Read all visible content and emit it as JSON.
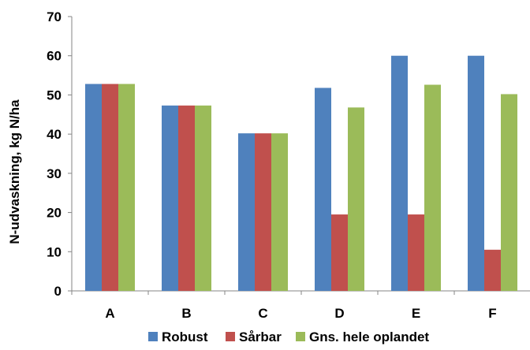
{
  "chart_data": {
    "type": "bar",
    "title": "",
    "xlabel": "",
    "ylabel": "N-udvaskning, kg N/ha",
    "categories": [
      "A",
      "B",
      "C",
      "D",
      "E",
      "F"
    ],
    "series": [
      {
        "name": "Robust",
        "color": "#4F81BD",
        "values": [
          52.8,
          47.3,
          40.2,
          51.8,
          60.0,
          60.0
        ]
      },
      {
        "name": "Sårbar",
        "color": "#C0504D",
        "values": [
          52.8,
          47.3,
          40.2,
          19.5,
          19.5,
          10.5
        ]
      },
      {
        "name": "Gns. hele oplandet",
        "color": "#9BBB59",
        "values": [
          52.8,
          47.3,
          40.2,
          46.8,
          52.6,
          50.2
        ]
      }
    ],
    "ylim": [
      0,
      70
    ],
    "yticks": [
      0,
      10,
      20,
      30,
      40,
      50,
      60,
      70
    ],
    "grid": false,
    "legend": "bottom"
  }
}
